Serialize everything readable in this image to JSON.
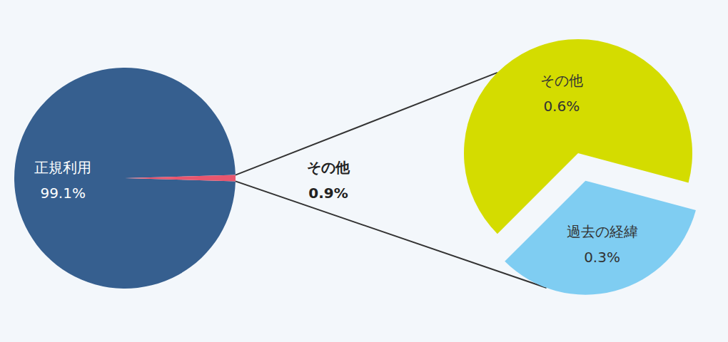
{
  "chart_data": [
    {
      "type": "pie",
      "categories": [
        "正規利用",
        "その他"
      ],
      "values": [
        99.1,
        0.9
      ],
      "value_labels": [
        "99.1%",
        "0.9%"
      ],
      "colors": [
        "#365f8f",
        "#e8566e"
      ],
      "data_labels": true
    },
    {
      "type": "pie",
      "categories": [
        "その他",
        "過去の経緯"
      ],
      "values": [
        0.6,
        0.3
      ],
      "value_labels": [
        "0.6%",
        "0.3%"
      ],
      "colors": [
        "#d4dc00",
        "#7fcdf2"
      ],
      "data_labels": true
    }
  ]
}
